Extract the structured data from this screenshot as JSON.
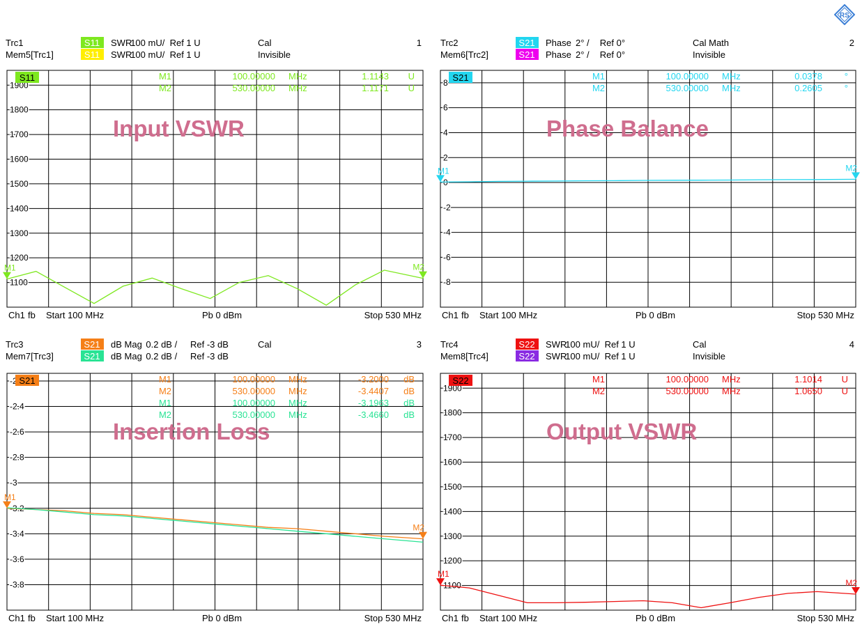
{
  "logo_text": "RS",
  "panels": [
    {
      "number": "1",
      "header_rows": [
        {
          "trace": "Trc1",
          "badge": "S11",
          "badge_color": "#7ee81f",
          "badge_text_color": "#ffffff",
          "format": "SWR",
          "scale": "100 mU/",
          "ref": "Ref 1 U",
          "status": "Cal"
        },
        {
          "trace": "Mem5[Trc1]",
          "badge": "S11",
          "badge_color": "#ffee00",
          "badge_text_color": "#ffffff",
          "format": "SWR",
          "scale": "100 mU/",
          "ref": "Ref 1 U",
          "status": "Invisible"
        }
      ],
      "plot_badge": "S11",
      "plot_badge_color": "#7ee81f",
      "plot_badge_text_color": "#000000",
      "title": "Input VSWR",
      "markers": [
        {
          "name": "M1",
          "freq": "100.00000",
          "unit": "MHz",
          "value": "1.1143",
          "vunit": "U",
          "color": "#7ee81f"
        },
        {
          "name": "M2",
          "freq": "530.00000",
          "unit": "MHz",
          "value": "1.1171",
          "vunit": "U",
          "color": "#7ee81f"
        }
      ],
      "footer": {
        "channel": "Ch1",
        "mode": "fb",
        "start": "Start  100 MHz",
        "power": "Pb   0 dBm",
        "stop": "Stop  530 MHz"
      }
    },
    {
      "number": "2",
      "header_rows": [
        {
          "trace": "Trc2",
          "badge": "S21",
          "badge_color": "#22d6f0",
          "badge_text_color": "#ffffff",
          "format": "Phase",
          "scale": "2° /",
          "ref": "Ref 0°",
          "status": "Cal Math"
        },
        {
          "trace": "Mem6[Trc2]",
          "badge": "S21",
          "badge_color": "#ee00ee",
          "badge_text_color": "#ffffff",
          "format": "Phase",
          "scale": "2° /",
          "ref": "Ref 0°",
          "status": "Invisible"
        }
      ],
      "plot_badge": "S21",
      "plot_badge_color": "#22d6f0",
      "plot_badge_text_color": "#000000",
      "title": "Phase Balance",
      "markers": [
        {
          "name": "M1",
          "freq": "100.00000",
          "unit": "MHz",
          "value": "0.0378",
          "vunit": "°",
          "color": "#22d6f0"
        },
        {
          "name": "M2",
          "freq": "530.00000",
          "unit": "MHz",
          "value": "0.2605",
          "vunit": "°",
          "color": "#22d6f0"
        }
      ],
      "footer": {
        "channel": "Ch1",
        "mode": "fb",
        "start": "Start  100 MHz",
        "power": "Pb   0 dBm",
        "stop": "Stop  530 MHz"
      }
    },
    {
      "number": "3",
      "header_rows": [
        {
          "trace": "Trc3",
          "badge": "S21",
          "badge_color": "#f57f17",
          "badge_text_color": "#ffffff",
          "format": "dB Mag",
          "scale": "0.2 dB /",
          "ref": "Ref -3 dB",
          "status": "Cal"
        },
        {
          "trace": "Mem7[Trc3]",
          "badge": "S21",
          "badge_color": "#29e394",
          "badge_text_color": "#ffffff",
          "format": "dB Mag",
          "scale": "0.2 dB /",
          "ref": "Ref -3 dB",
          "status": ""
        }
      ],
      "plot_badge": "S21",
      "plot_badge_color": "#f57f17",
      "plot_badge_text_color": "#000000",
      "title": "Insertion Loss",
      "markers": [
        {
          "name": "M1",
          "freq": "100.00000",
          "unit": "MHz",
          "value": "-3.2000",
          "vunit": "dB",
          "color": "#f57f17"
        },
        {
          "name": "M2",
          "freq": "530.00000",
          "unit": "MHz",
          "value": "-3.4407",
          "vunit": "dB",
          "color": "#f57f17"
        },
        {
          "name": "M1",
          "freq": "100.00000",
          "unit": "MHz",
          "value": "-3.1963",
          "vunit": "dB",
          "color": "#29e394"
        },
        {
          "name": "M2",
          "freq": "530.00000",
          "unit": "MHz",
          "value": "-3.4660",
          "vunit": "dB",
          "color": "#29e394"
        }
      ],
      "footer": {
        "channel": "Ch1",
        "mode": "fb",
        "start": "Start  100 MHz",
        "power": "Pb   0 dBm",
        "stop": "Stop  530 MHz"
      }
    },
    {
      "number": "4",
      "header_rows": [
        {
          "trace": "Trc4",
          "badge": "S22",
          "badge_color": "#ee1111",
          "badge_text_color": "#ffffff",
          "format": "SWR",
          "scale": "100 mU/",
          "ref": "Ref 1 U",
          "status": "Cal"
        },
        {
          "trace": "Mem8[Trc4]",
          "badge": "S22",
          "badge_color": "#8a2be2",
          "badge_text_color": "#ffffff",
          "format": "SWR",
          "scale": "100 mU/",
          "ref": "Ref 1 U",
          "status": "Invisible"
        }
      ],
      "plot_badge": "S22",
      "plot_badge_color": "#ee1111",
      "plot_badge_text_color": "#000000",
      "title": "Output VSWR",
      "markers": [
        {
          "name": "M1",
          "freq": "100.00000",
          "unit": "MHz",
          "value": "1.1014",
          "vunit": "U",
          "color": "#ee1111"
        },
        {
          "name": "M2",
          "freq": "530.00000",
          "unit": "MHz",
          "value": "1.0650",
          "vunit": "U",
          "color": "#ee1111"
        }
      ],
      "footer": {
        "channel": "Ch1",
        "mode": "fb",
        "start": "Start  100 MHz",
        "power": "Pb   0 dBm",
        "stop": "Stop  530 MHz"
      }
    }
  ],
  "chart_data": [
    {
      "type": "line",
      "title": "Input VSWR",
      "x": [
        100,
        130,
        160,
        190,
        220,
        250,
        280,
        310,
        340,
        370,
        400,
        430,
        460,
        490,
        530
      ],
      "xlim": [
        100,
        530
      ],
      "ylim": [
        1000,
        1960
      ],
      "yticks": [
        1100,
        1200,
        1300,
        1400,
        1500,
        1600,
        1700,
        1800,
        1900
      ],
      "grid": true,
      "series": [
        {
          "name": "S11",
          "color": "#7ee81f",
          "values": [
            1114,
            1145,
            1080,
            1015,
            1085,
            1118,
            1075,
            1035,
            1100,
            1128,
            1075,
            1008,
            1090,
            1150,
            1117
          ]
        },
        {
          "name": "S11",
          "color": "#ffee00",
          "values": [
            1114,
            1145,
            1080,
            1015,
            1085,
            1118,
            1075,
            1035,
            1100,
            1128,
            1075,
            1008,
            1090,
            1150,
            1117
          ],
          "hidden": true
        }
      ],
      "marker_x": [
        100,
        530
      ]
    },
    {
      "type": "line",
      "title": "Phase Balance",
      "x": [
        100,
        130,
        160,
        190,
        220,
        250,
        280,
        310,
        340,
        370,
        400,
        430,
        460,
        490,
        530
      ],
      "xlim": [
        100,
        530
      ],
      "ylim": [
        -10,
        9
      ],
      "yticks": [
        -8,
        -6,
        -4,
        -2,
        0,
        2,
        4,
        6,
        8
      ],
      "grid": true,
      "series": [
        {
          "name": "S21",
          "color": "#22d6f0",
          "values": [
            0.04,
            0.06,
            0.09,
            0.11,
            0.12,
            0.14,
            0.15,
            0.17,
            0.18,
            0.19,
            0.2,
            0.22,
            0.23,
            0.24,
            0.26
          ]
        }
      ],
      "marker_x": [
        100,
        530
      ]
    },
    {
      "type": "line",
      "title": "Insertion Loss",
      "x": [
        100,
        130,
        160,
        190,
        220,
        250,
        280,
        310,
        340,
        370,
        400,
        430,
        460,
        490,
        530
      ],
      "xlim": [
        100,
        530
      ],
      "ylim": [
        -4.0,
        -2.14
      ],
      "yticks": [
        -3.8,
        -3.6,
        -3.4,
        -3.2,
        -3.0,
        -2.8,
        -2.6,
        -2.4,
        -2.2
      ],
      "grid": true,
      "series": [
        {
          "name": "S21",
          "color": "#f57f17",
          "values": [
            -3.2,
            -3.21,
            -3.22,
            -3.24,
            -3.25,
            -3.27,
            -3.29,
            -3.31,
            -3.33,
            -3.35,
            -3.36,
            -3.38,
            -3.4,
            -3.42,
            -3.44
          ]
        },
        {
          "name": "S21",
          "color": "#29e394",
          "values": [
            -3.196,
            -3.21,
            -3.23,
            -3.25,
            -3.26,
            -3.28,
            -3.3,
            -3.32,
            -3.34,
            -3.36,
            -3.38,
            -3.4,
            -3.42,
            -3.44,
            -3.466
          ]
        }
      ],
      "marker_x": [
        100,
        530
      ]
    },
    {
      "type": "line",
      "title": "Output VSWR",
      "x": [
        100,
        130,
        160,
        190,
        220,
        250,
        280,
        310,
        340,
        370,
        400,
        430,
        460,
        490,
        530
      ],
      "xlim": [
        100,
        530
      ],
      "ylim": [
        1000,
        1960
      ],
      "yticks": [
        1100,
        1200,
        1300,
        1400,
        1500,
        1600,
        1700,
        1800,
        1900
      ],
      "grid": true,
      "series": [
        {
          "name": "S22",
          "color": "#ee1111",
          "values": [
            1101,
            1090,
            1060,
            1030,
            1030,
            1032,
            1035,
            1038,
            1030,
            1010,
            1030,
            1052,
            1068,
            1075,
            1065
          ]
        }
      ],
      "marker_x": [
        100,
        530
      ]
    }
  ]
}
